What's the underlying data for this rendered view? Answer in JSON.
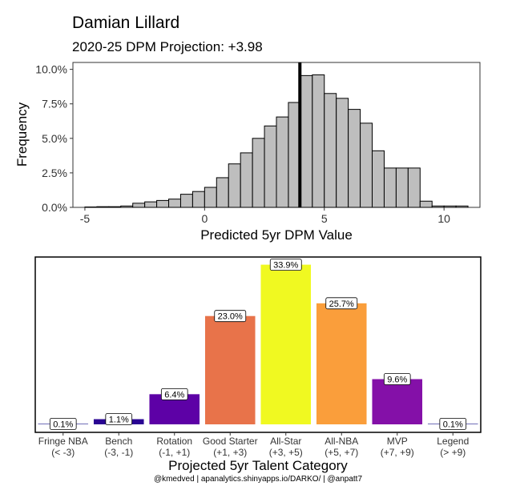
{
  "title": "Damian Lillard",
  "subtitle": "2020-25 DPM Projection: +3.98",
  "caption": "@kmedved | apanalytics.shinyapps.io/DARKO/ | @anpatt7",
  "chart_data": [
    {
      "type": "bar",
      "subtype": "histogram",
      "xlabel": "Predicted 5yr DPM Value",
      "ylabel": "Frequency",
      "xlim": [
        -5.5,
        11.5
      ],
      "ylim": [
        0,
        0.105
      ],
      "x_ticks": [
        -5,
        0,
        5,
        10
      ],
      "x_tick_labels": [
        "-5",
        "0",
        "5",
        "10"
      ],
      "y_ticks": [
        0,
        0.025,
        0.05,
        0.075,
        0.1
      ],
      "y_tick_labels": [
        "0.0%",
        "2.5%",
        "5.0%",
        "7.5%",
        "10.0%"
      ],
      "bin_width": 0.5,
      "bin_starts": [
        -5,
        -4.5,
        -4,
        -3.5,
        -3,
        -2.5,
        -2,
        -1.5,
        -1,
        -0.5,
        0,
        0.5,
        1,
        1.5,
        2,
        2.5,
        3,
        3.5,
        4,
        4.5,
        5,
        5.5,
        6,
        6.5,
        7,
        7.5,
        8,
        8.5,
        9,
        9.5,
        10,
        10.5
      ],
      "values": [
        0.0003,
        0.0005,
        0.0005,
        0.001,
        0.003,
        0.004,
        0.005,
        0.006,
        0.0095,
        0.0115,
        0.0145,
        0.0215,
        0.0315,
        0.0395,
        0.05,
        0.059,
        0.0655,
        0.076,
        0.0955,
        0.096,
        0.0825,
        0.079,
        0.071,
        0.061,
        0.041,
        0.0285,
        0.0285,
        0.0285,
        0.0045,
        0.001,
        0.001,
        0.001
      ],
      "reference_line": 3.98,
      "bar_color": "#BEBEBE",
      "grid": false
    },
    {
      "type": "bar",
      "xlabel": "Projected 5yr Talent Category",
      "ylabel": "",
      "ylim": [
        0,
        0.34
      ],
      "categories": [
        "Fringe NBA",
        "Bench",
        "Rotation",
        "Good Starter",
        "All-Star",
        "All-NBA",
        "MVP",
        "Legend"
      ],
      "category_ranges": [
        "(< -3)",
        "(-3, -1)",
        "(-1, +1)",
        "(+1, +3)",
        "(+3, +5)",
        "(+5, +7)",
        "(+7, +9)",
        "(> +9)"
      ],
      "values": [
        0.001,
        0.011,
        0.064,
        0.23,
        0.339,
        0.257,
        0.096,
        0.001
      ],
      "data_labels": [
        "0.1%",
        "1.1%",
        "6.4%",
        "23.0%",
        "33.9%",
        "25.7%",
        "9.6%",
        "0.1%"
      ],
      "colors": [
        "#0D0887",
        "#2A0593",
        "#5D01A6",
        "#E8734A",
        "#F0F921",
        "#FA9E3B",
        "#8410A8",
        "#0D0887"
      ],
      "grid": false
    }
  ]
}
